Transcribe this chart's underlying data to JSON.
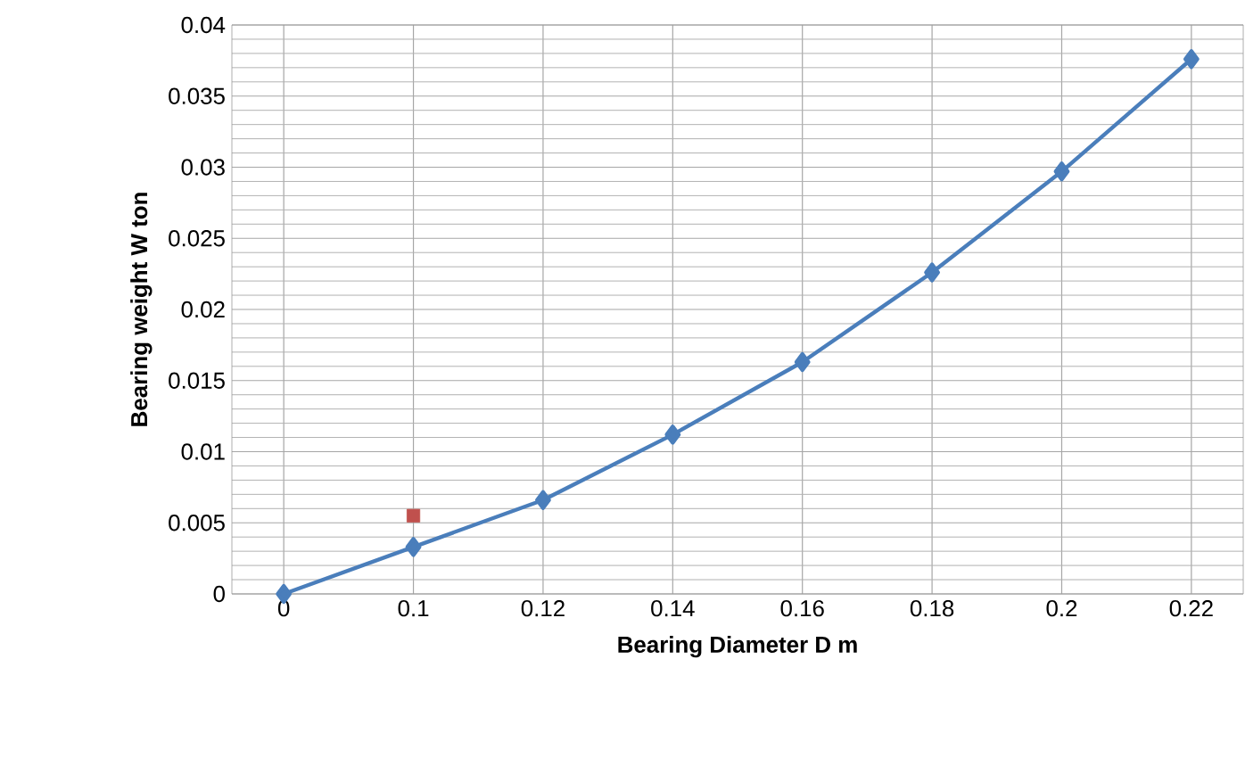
{
  "chart_data": {
    "type": "line",
    "xlabel": "Bearing Diameter D m",
    "ylabel": "Bearing weight W ton",
    "categories": [
      "0",
      "0.1",
      "0.12",
      "0.14",
      "0.16",
      "0.18",
      "0.2",
      "0.22"
    ],
    "series": [
      {
        "color": "#4a7ebb",
        "values": [
          0,
          0.0033,
          0.0066,
          0.0112,
          0.0163,
          0.0226,
          0.0297,
          0.0376
        ],
        "marker": "diamond"
      },
      {
        "type": "scatter",
        "color": "#c0504d",
        "values": [
          null,
          0.0055,
          null,
          null,
          null,
          null,
          null,
          null
        ],
        "marker": "square"
      }
    ],
    "ylim": [
      0,
      0.04
    ],
    "yticks": [
      0,
      0.005,
      0.01,
      0.015,
      0.02,
      0.025,
      0.03,
      0.035,
      0.04
    ],
    "grid": true
  }
}
